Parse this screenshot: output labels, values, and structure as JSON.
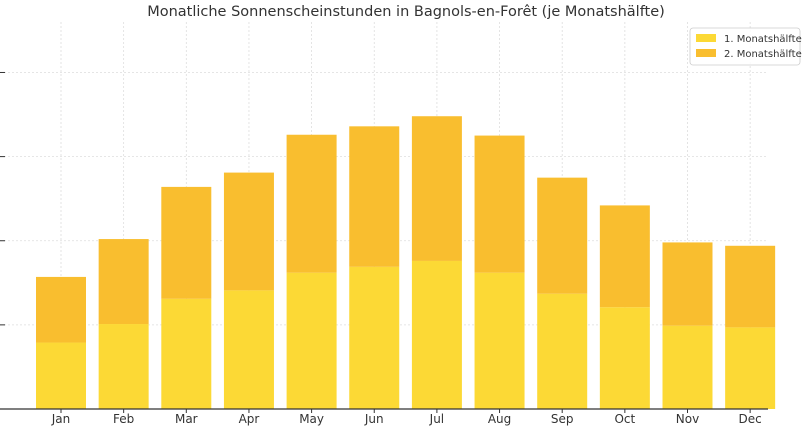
{
  "chart_data": {
    "type": "bar",
    "stacked": true,
    "title": "Monatliche Sonnenscheinstunden in Bagnols-en-Forêt (je Monatshälfte)",
    "xlabel": "",
    "ylabel": "",
    "categories": [
      "Jan",
      "Feb",
      "Mar",
      "Apr",
      "May",
      "Jun",
      "Jul",
      "Aug",
      "Sep",
      "Oct",
      "Nov",
      "Dec"
    ],
    "series": [
      {
        "name": "1. Monatshälfte",
        "color": "#FCD935",
        "values": [
          79,
          101,
          131,
          141,
          162,
          169,
          176,
          162,
          137,
          121,
          99,
          97
        ]
      },
      {
        "name": "2. Monatshälfte",
        "color": "#F9BE2F",
        "values": [
          78,
          101,
          133,
          140,
          164,
          167,
          172,
          163,
          138,
          121,
          99,
          97
        ]
      }
    ],
    "ylim": [
      0,
      460
    ],
    "y_gridlines": [
      0,
      100,
      200,
      300,
      400
    ],
    "grid": true,
    "legend_position": "top-right"
  }
}
